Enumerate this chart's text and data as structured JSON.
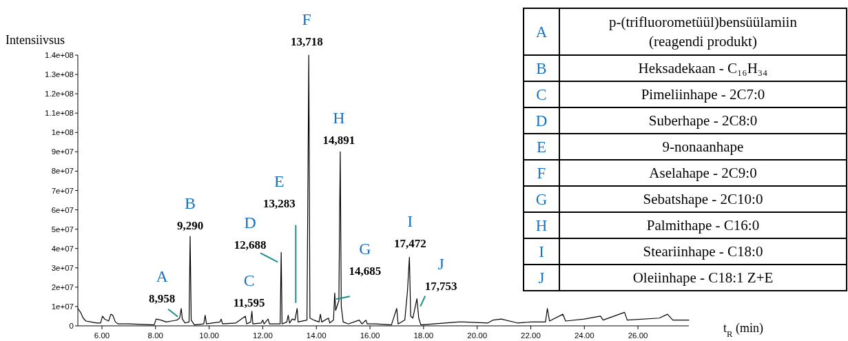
{
  "chart_data": {
    "type": "line",
    "xlabel": "t$_{R}$ (min)",
    "ylabel": "Intensiivsus",
    "xlim": [
      5.1,
      27.9
    ],
    "ylim": [
      0,
      140000000
    ],
    "xticks": [
      {
        "value": 6,
        "label": "6.00"
      },
      {
        "value": 8,
        "label": "8.00"
      },
      {
        "value": 10,
        "label": "10.00"
      },
      {
        "value": 12,
        "label": "12.00"
      },
      {
        "value": 14,
        "label": "14.00"
      },
      {
        "value": 16,
        "label": "16.00"
      },
      {
        "value": 18,
        "label": "18.00"
      },
      {
        "value": 20,
        "label": "20.00"
      },
      {
        "value": 22,
        "label": "22.00"
      },
      {
        "value": 24,
        "label": "24.00"
      },
      {
        "value": 26,
        "label": "26.00"
      }
    ],
    "yticks": [
      0,
      {
        "value": 10000000,
        "label": "1e+07"
      },
      {
        "value": 20000000,
        "label": "2e+07"
      },
      {
        "value": 30000000,
        "label": "3e+07"
      },
      {
        "value": 40000000,
        "label": "4e+07"
      },
      {
        "value": 50000000,
        "label": "5e+07"
      },
      {
        "value": 60000000,
        "label": "6e+07"
      },
      {
        "value": 70000000,
        "label": "7e+07"
      },
      {
        "value": 80000000,
        "label": "8e+07"
      },
      {
        "value": 90000000,
        "label": "9e+07"
      },
      {
        "value": 100000000,
        "label": "1e+08"
      },
      {
        "value": 110000000,
        "label": "1.1e+08"
      },
      {
        "value": 120000000,
        "label": "1.2e+08"
      },
      {
        "value": 130000000,
        "label": "1.3e+08"
      },
      {
        "value": 140000000,
        "label": "1.4e+08"
      }
    ],
    "series": [
      {
        "color": "#000000",
        "x": [
          5.1,
          5.2,
          5.3,
          5.4,
          5.6,
          5.8,
          5.95,
          6.02,
          6.1,
          6.25,
          6.33,
          6.4,
          6.5,
          6.6,
          7.0,
          7.95,
          8.02,
          8.2,
          8.4,
          8.6,
          8.8,
          8.9,
          8.958,
          9.0,
          9.1,
          9.25,
          9.29,
          9.33,
          9.45,
          9.8,
          9.85,
          9.9,
          10.4,
          10.45,
          10.5,
          11.0,
          11.35,
          11.4,
          11.55,
          11.595,
          11.63,
          11.95,
          12.0,
          12.05,
          12.2,
          12.25,
          12.65,
          12.688,
          12.72,
          12.9,
          12.95,
          13.0,
          13.1,
          13.2,
          13.283,
          13.32,
          13.65,
          13.718,
          13.76,
          13.9,
          14.1,
          14.15,
          14.2,
          14.45,
          14.5,
          14.64,
          14.685,
          14.72,
          14.84,
          14.891,
          14.93,
          15.0,
          15.2,
          15.6,
          15.7,
          15.85,
          15.9,
          16.2,
          16.8,
          17.0,
          17.05,
          17.3,
          17.4,
          17.472,
          17.52,
          17.6,
          17.753,
          17.82,
          17.9,
          18.8,
          19.3,
          19.5,
          20.4,
          20.6,
          20.9,
          21.5,
          22.0,
          22.55,
          22.62,
          22.7,
          23.2,
          23.3,
          24.0,
          24.6,
          24.7,
          25.5,
          25.6,
          26.8,
          27.1,
          27.3,
          27.9
        ],
        "values": [
          9000000,
          7000000,
          4000000,
          2500000,
          2000000,
          1500000,
          1500000,
          5000000,
          3500000,
          2500000,
          6000000,
          5500000,
          2000000,
          1000000,
          1000000,
          500000,
          3500000,
          3000000,
          2000000,
          2500000,
          3000000,
          4000000,
          9000000,
          3500000,
          1500000,
          2000000,
          46300000,
          3000000,
          500000,
          1000000,
          5500000,
          1000000,
          2000000,
          3500000,
          1000000,
          1500000,
          5000000,
          1000000,
          2000000,
          7500000,
          1000000,
          1500000,
          3000000,
          1000000,
          3500000,
          1000000,
          1000000,
          38000000,
          1000000,
          2000000,
          5500000,
          1500000,
          3500000,
          3000000,
          9000000,
          2000000,
          3000000,
          140000000,
          4000000,
          3000000,
          2000000,
          6000000,
          2000000,
          4000000,
          1500000,
          3000000,
          17000000,
          8000000,
          13000000,
          90000000,
          10000000,
          2000000,
          1000000,
          3000000,
          1000000,
          3000000,
          1000000,
          1000000,
          500000,
          9000000,
          1000000,
          3000000,
          18000000,
          35500000,
          5000000,
          4000000,
          14000000,
          4000000,
          500000,
          1500000,
          2000000,
          2000000,
          1500000,
          3000000,
          3500000,
          1500000,
          2000000,
          2000000,
          9000000,
          2500000,
          6000000,
          2500000,
          3500000,
          5000000,
          3000000,
          7000000,
          3000000,
          4000000,
          6000000,
          3000000,
          3000000
        ]
      }
    ],
    "annotations": [
      {
        "text": "A\n8,958",
        "x": 8.958,
        "y": 9000000
      },
      {
        "text": "B\n9,290",
        "x": 9.29,
        "y": 46300000
      },
      {
        "text": "C\n11,595",
        "x": 11.595,
        "y": 7500000
      },
      {
        "text": "D\n12,688",
        "x": 12.688,
        "y": 38000000
      },
      {
        "text": "E\n13,283",
        "x": 13.283,
        "y": 9000000
      },
      {
        "text": "F\n13,718",
        "x": 13.718,
        "y": 140000000
      },
      {
        "text": "G\n14,685",
        "x": 14.685,
        "y": 17000000
      },
      {
        "text": "H\n14,891",
        "x": 14.891,
        "y": 90000000
      },
      {
        "text": "I\n17,472",
        "x": 17.472,
        "y": 35500000
      },
      {
        "text": "J\n17,753",
        "x": 17.753,
        "y": 14000000
      },
      "A",
      "p-(trifluorometüül)bensüülamiin\n(reagendi produkt)",
      "B",
      "Heksadekaan - C₁₆H₃₄",
      "C",
      "Pimeliinhape - 2C7:0",
      "D",
      "Suberhape - 2C8:0",
      "E",
      "9-nonaanhape",
      "F",
      "Aselahape - 2C9:0",
      "G",
      "Sebatshape - 2C10:0",
      "H",
      "Palmithape - C16:0",
      "I",
      "Steariinhape - C18:0",
      "J",
      "Oleiinhape - C18:1 Z+E"
    ]
  }
}
